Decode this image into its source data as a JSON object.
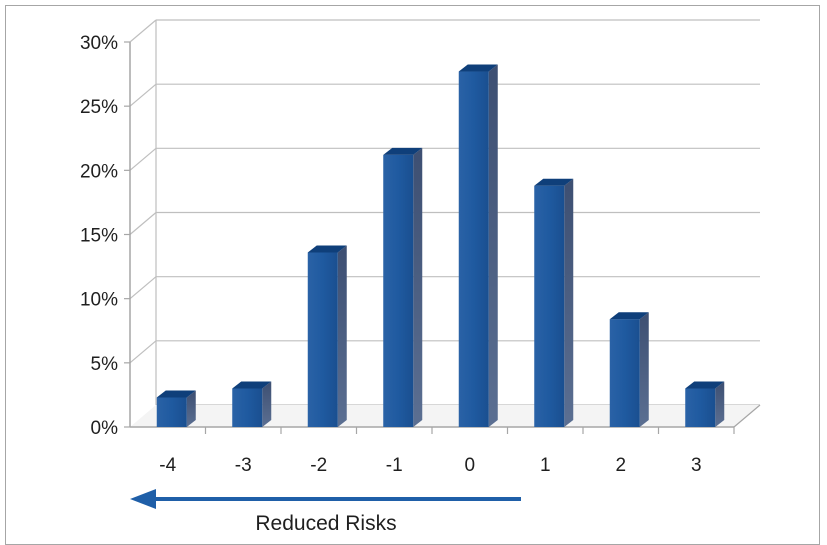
{
  "chart_data": {
    "type": "bar",
    "title": "",
    "xlabel": "",
    "ylabel": "",
    "categories": [
      "-4",
      "-3",
      "-2",
      "-1",
      "0",
      "1",
      "2",
      "3"
    ],
    "series": [
      {
        "values": [
          2.3,
          3.0,
          13.6,
          21.2,
          27.7,
          18.8,
          8.4,
          3.0
        ]
      }
    ],
    "ylim": [
      0,
      30
    ],
    "yticks": [
      "0%",
      "5%",
      "10%",
      "15%",
      "20%",
      "25%",
      "30%"
    ],
    "grid": true,
    "legend": "none",
    "three_d": true,
    "colors": {
      "bar_front": "#1f5fa8",
      "bar_top": "#0f3f7a",
      "bar_side": "#4a5a7a",
      "arrow": "#1f5fa8",
      "grid": "#bfbfbf",
      "axis": "#a6a6a6"
    },
    "annotation": {
      "text": "Reduced Risks",
      "arrow_direction": "left"
    }
  }
}
